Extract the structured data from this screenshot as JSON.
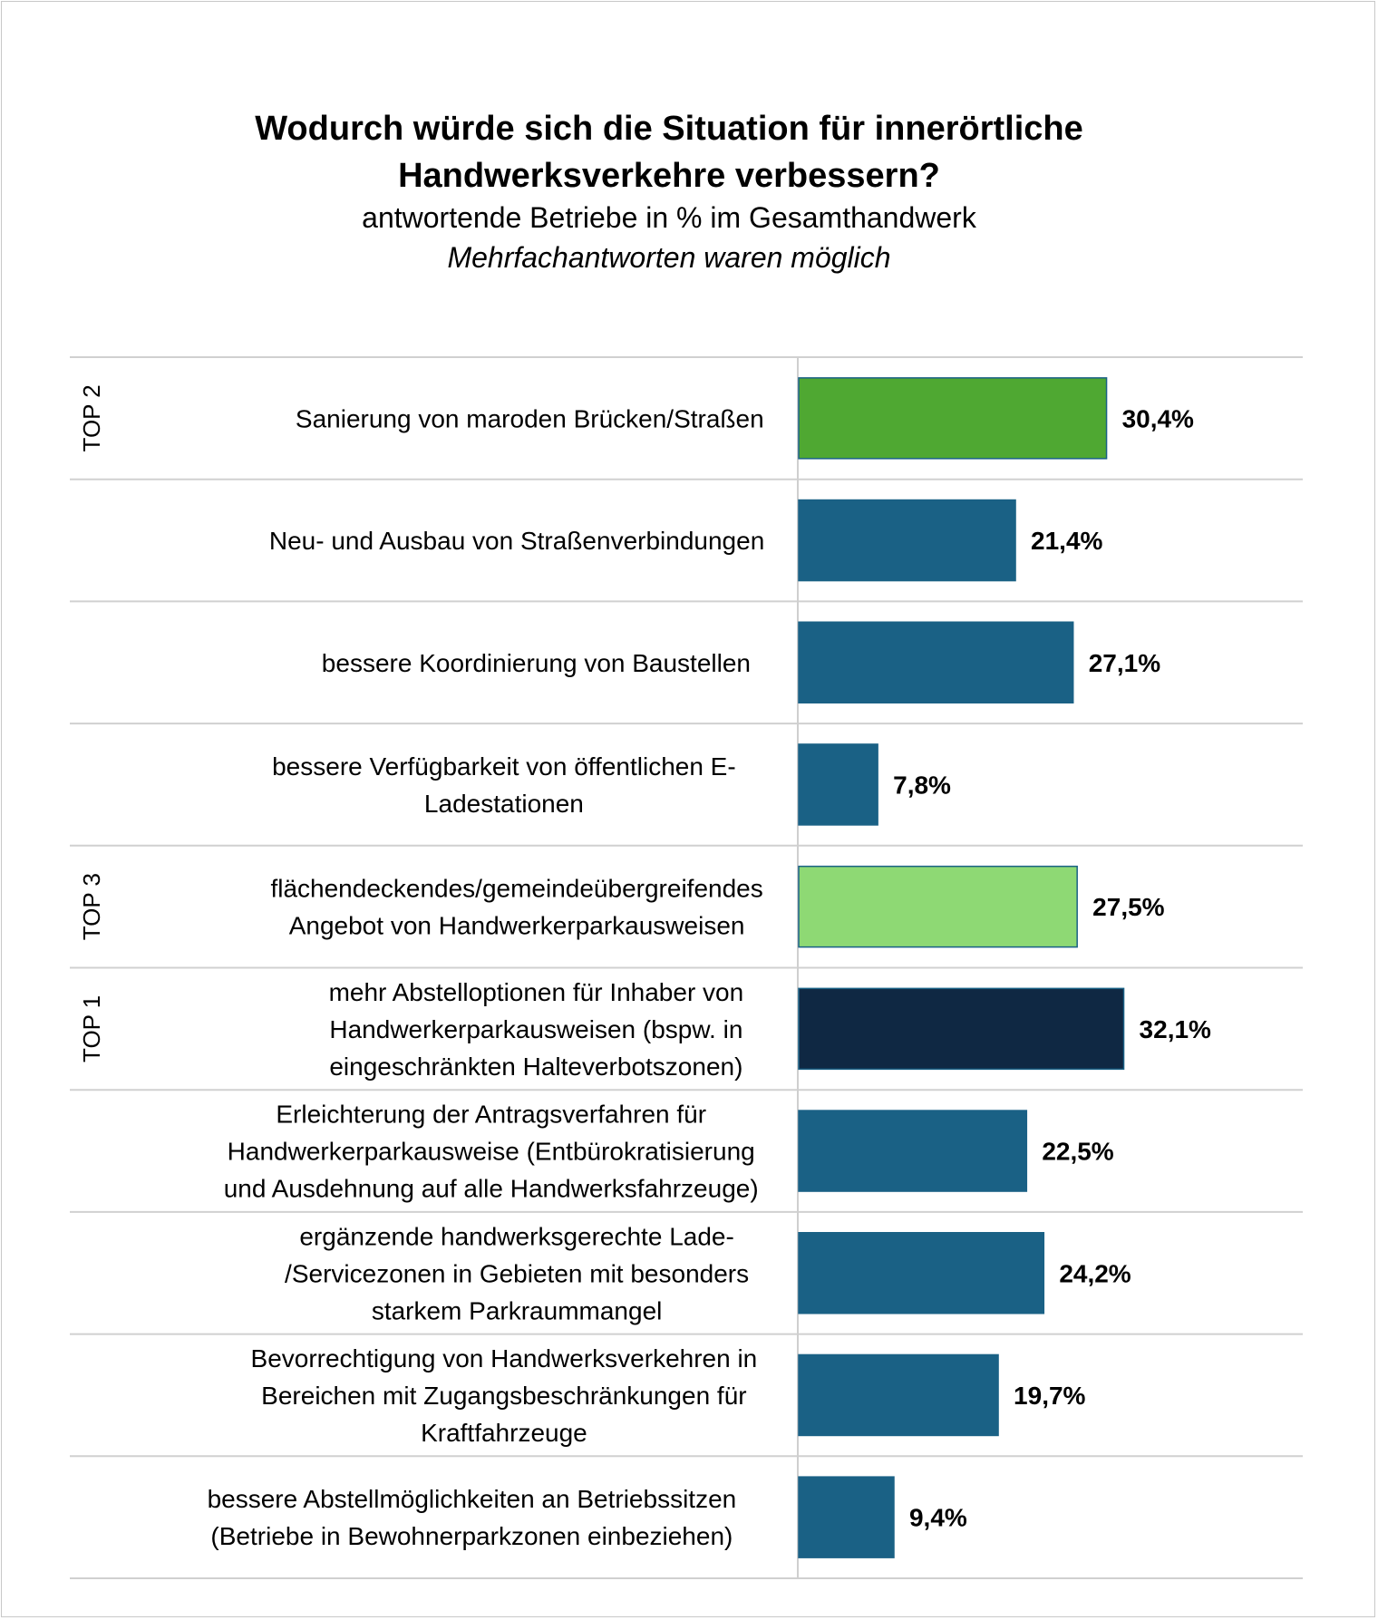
{
  "chart_data": {
    "type": "bar",
    "orientation": "horizontal",
    "title_line1": "Wodurch würde sich die Situation für innerörtliche",
    "title_line2": "Handwerksverkehre verbessern?",
    "subtitle": "antwortende Betriebe in % im Gesamthandwerk",
    "note": "Mehrfachantworten waren möglich",
    "unit": "%",
    "xlim": [
      0,
      50
    ],
    "colors": {
      "default": "#1a6185",
      "top1": "#0f2843",
      "top2": "#4fa832",
      "top3": "#8ed974",
      "edge": "#1a6185"
    },
    "categories": [
      [
        "Sanierung von maroden Brücken/Straßen"
      ],
      [
        "Neu- und Ausbau von Straßenverbindungen"
      ],
      [
        "bessere Koordinierung von Baustellen"
      ],
      [
        "bessere Verfügbarkeit von öffentlichen E-",
        "Ladestationen"
      ],
      [
        "flächendeckendes/gemeindeübergreifendes",
        "Angebot von Handwerkerparkausweisen"
      ],
      [
        "mehr Abstelloptionen für Inhaber von",
        "Handwerkerparkausweisen (bspw. in",
        "eingeschränkten Halteverbotszonen)"
      ],
      [
        "Erleichterung der Antragsverfahren für",
        "Handwerkerparkausweise (Entbürokratisierung",
        "und Ausdehnung auf alle Handwerksfahrzeuge)"
      ],
      [
        "ergänzende handwerksgerechte Lade-",
        "/Servicezonen in Gebieten mit besonders",
        "starkem Parkraummangel"
      ],
      [
        "Bevorrechtigung von Handwerksverkehren in",
        "Bereichen mit Zugangsbeschränkungen für",
        "Kraftfahrzeuge"
      ],
      [
        "bessere Abstellmöglichkeiten an Betriebssitzen",
        "(Betriebe in Bewohnerparkzonen einbeziehen)"
      ]
    ],
    "values": [
      30.4,
      21.4,
      27.1,
      7.8,
      27.5,
      32.1,
      22.5,
      24.2,
      19.7,
      9.4
    ],
    "value_labels": [
      "30,4%",
      "21,4%",
      "27,1%",
      "7,8%",
      "27,5%",
      "32,1%",
      "22,5%",
      "24,2%",
      "19,7%",
      "9,4%"
    ],
    "ranks": [
      "TOP 2",
      "",
      "",
      "",
      "TOP 3",
      "TOP 1",
      "",
      "",
      "",
      ""
    ],
    "rank_color_keys": [
      "top2",
      "default",
      "default",
      "default",
      "top3",
      "top1",
      "default",
      "default",
      "default",
      "default"
    ]
  }
}
